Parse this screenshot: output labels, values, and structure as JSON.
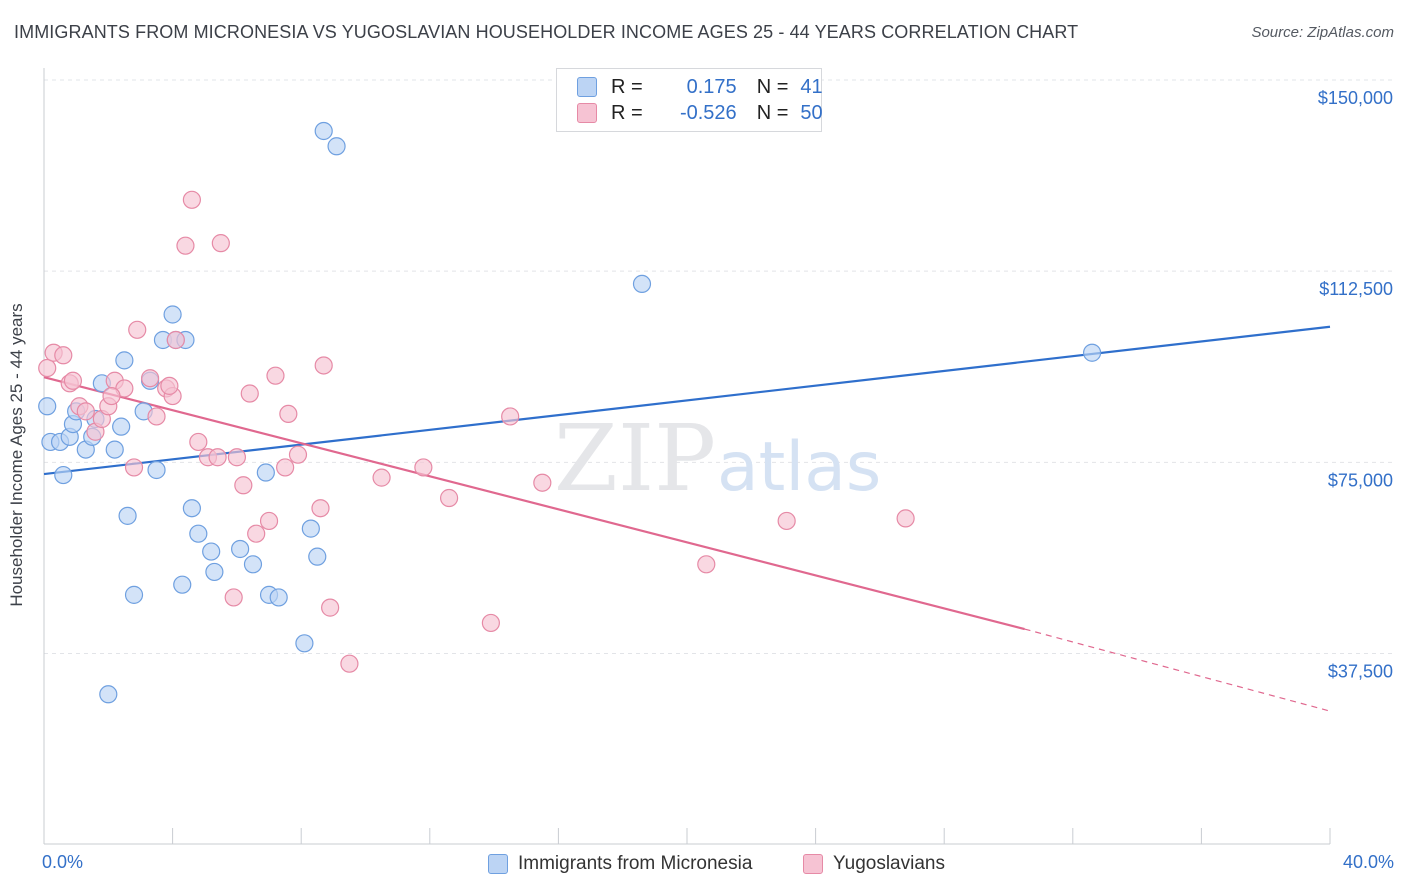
{
  "title": "IMMIGRANTS FROM MICRONESIA VS YUGOSLAVIAN HOUSEHOLDER INCOME AGES 25 - 44 YEARS CORRELATION CHART",
  "source": "Source: ZipAtlas.com",
  "watermark": {
    "zip": "ZIP",
    "atlas": "atlas"
  },
  "legend": {
    "r_label": "R =",
    "n_label": "N =",
    "series": [
      {
        "name": "Immigrants from Micronesia",
        "r": "0.175",
        "n": "41"
      },
      {
        "name": "Yugoslavians",
        "r": "-0.526",
        "n": "50"
      }
    ]
  },
  "chart_data": {
    "type": "scatter",
    "title": "IMMIGRANTS FROM MICRONESIA VS YUGOSLAVIAN HOUSEHOLDER INCOME AGES 25 - 44 YEARS CORRELATION CHART",
    "xlabel": "",
    "ylabel": "Householder Income Ages 25 - 44 years",
    "xlim": [
      0,
      40
    ],
    "ylim": [
      0,
      152000
    ],
    "x_tick_labels": [
      "0.0%",
      "40.0%"
    ],
    "y_ticks": [
      37500,
      75000,
      112500,
      150000
    ],
    "y_tick_labels": [
      "$37,500",
      "$75,000",
      "$112,500",
      "$150,000"
    ],
    "grid": true,
    "legend_position": "top-center",
    "series": [
      {
        "name": "Immigrants from Micronesia",
        "color": "#6fa0e0",
        "fill": "#bcd4f4",
        "trend": {
          "x": [
            0,
            40
          ],
          "y": [
            72700,
            101600
          ]
        },
        "points": [
          [
            0.1,
            86000
          ],
          [
            0.2,
            79000
          ],
          [
            0.5,
            79000
          ],
          [
            0.6,
            72500
          ],
          [
            0.8,
            80000
          ],
          [
            0.9,
            82500
          ],
          [
            1.0,
            85000
          ],
          [
            1.3,
            77500
          ],
          [
            1.5,
            80000
          ],
          [
            1.6,
            83500
          ],
          [
            1.8,
            90500
          ],
          [
            2.2,
            77500
          ],
          [
            2.4,
            82000
          ],
          [
            2.5,
            95000
          ],
          [
            2.6,
            64500
          ],
          [
            2.8,
            49000
          ],
          [
            3.1,
            85000
          ],
          [
            3.3,
            91000
          ],
          [
            3.5,
            73500
          ],
          [
            3.7,
            99000
          ],
          [
            4.0,
            104000
          ],
          [
            4.1,
            99000
          ],
          [
            4.3,
            51000
          ],
          [
            4.6,
            66000
          ],
          [
            4.8,
            61000
          ],
          [
            5.2,
            57500
          ],
          [
            5.3,
            53500
          ],
          [
            6.1,
            58000
          ],
          [
            6.5,
            55000
          ],
          [
            6.9,
            73000
          ],
          [
            7.0,
            49000
          ],
          [
            7.3,
            48500
          ],
          [
            8.1,
            39500
          ],
          [
            8.3,
            62000
          ],
          [
            8.5,
            56500
          ],
          [
            8.7,
            140000
          ],
          [
            9.1,
            137000
          ],
          [
            2.0,
            29500
          ],
          [
            18.6,
            110000
          ],
          [
            32.6,
            96500
          ],
          [
            4.4,
            99000
          ]
        ]
      },
      {
        "name": "Yugoslavians",
        "color": "#e68aa6",
        "fill": "#f6c3d3",
        "trend": {
          "x": [
            0,
            30.5
          ],
          "y": [
            91700,
            42300
          ]
        },
        "trend_dashed": {
          "x": [
            30.5,
            40
          ],
          "y": [
            42300,
            26200
          ]
        },
        "points": [
          [
            0.1,
            93500
          ],
          [
            0.3,
            96500
          ],
          [
            0.6,
            96000
          ],
          [
            0.8,
            90500
          ],
          [
            0.9,
            91000
          ],
          [
            1.1,
            86000
          ],
          [
            1.3,
            85000
          ],
          [
            1.6,
            81000
          ],
          [
            1.8,
            83500
          ],
          [
            2.0,
            86000
          ],
          [
            2.2,
            91000
          ],
          [
            2.5,
            89500
          ],
          [
            2.8,
            74000
          ],
          [
            2.9,
            101000
          ],
          [
            3.3,
            91500
          ],
          [
            3.5,
            84000
          ],
          [
            3.8,
            89500
          ],
          [
            4.0,
            88000
          ],
          [
            4.1,
            99000
          ],
          [
            4.4,
            117500
          ],
          [
            4.6,
            126500
          ],
          [
            4.8,
            79000
          ],
          [
            5.1,
            76000
          ],
          [
            5.4,
            76000
          ],
          [
            5.5,
            118000
          ],
          [
            5.9,
            48500
          ],
          [
            6.0,
            76000
          ],
          [
            6.2,
            70500
          ],
          [
            6.4,
            88500
          ],
          [
            6.6,
            61000
          ],
          [
            7.0,
            63500
          ],
          [
            7.2,
            92000
          ],
          [
            7.5,
            74000
          ],
          [
            7.6,
            84500
          ],
          [
            7.9,
            76500
          ],
          [
            8.6,
            66000
          ],
          [
            8.7,
            94000
          ],
          [
            8.9,
            46500
          ],
          [
            9.5,
            35500
          ],
          [
            10.5,
            72000
          ],
          [
            11.8,
            74000
          ],
          [
            12.6,
            68000
          ],
          [
            13.9,
            43500
          ],
          [
            14.5,
            84000
          ],
          [
            15.5,
            71000
          ],
          [
            20.6,
            55000
          ],
          [
            23.1,
            63500
          ],
          [
            26.8,
            64000
          ],
          [
            2.1,
            88000
          ],
          [
            3.9,
            90000
          ]
        ]
      }
    ]
  }
}
